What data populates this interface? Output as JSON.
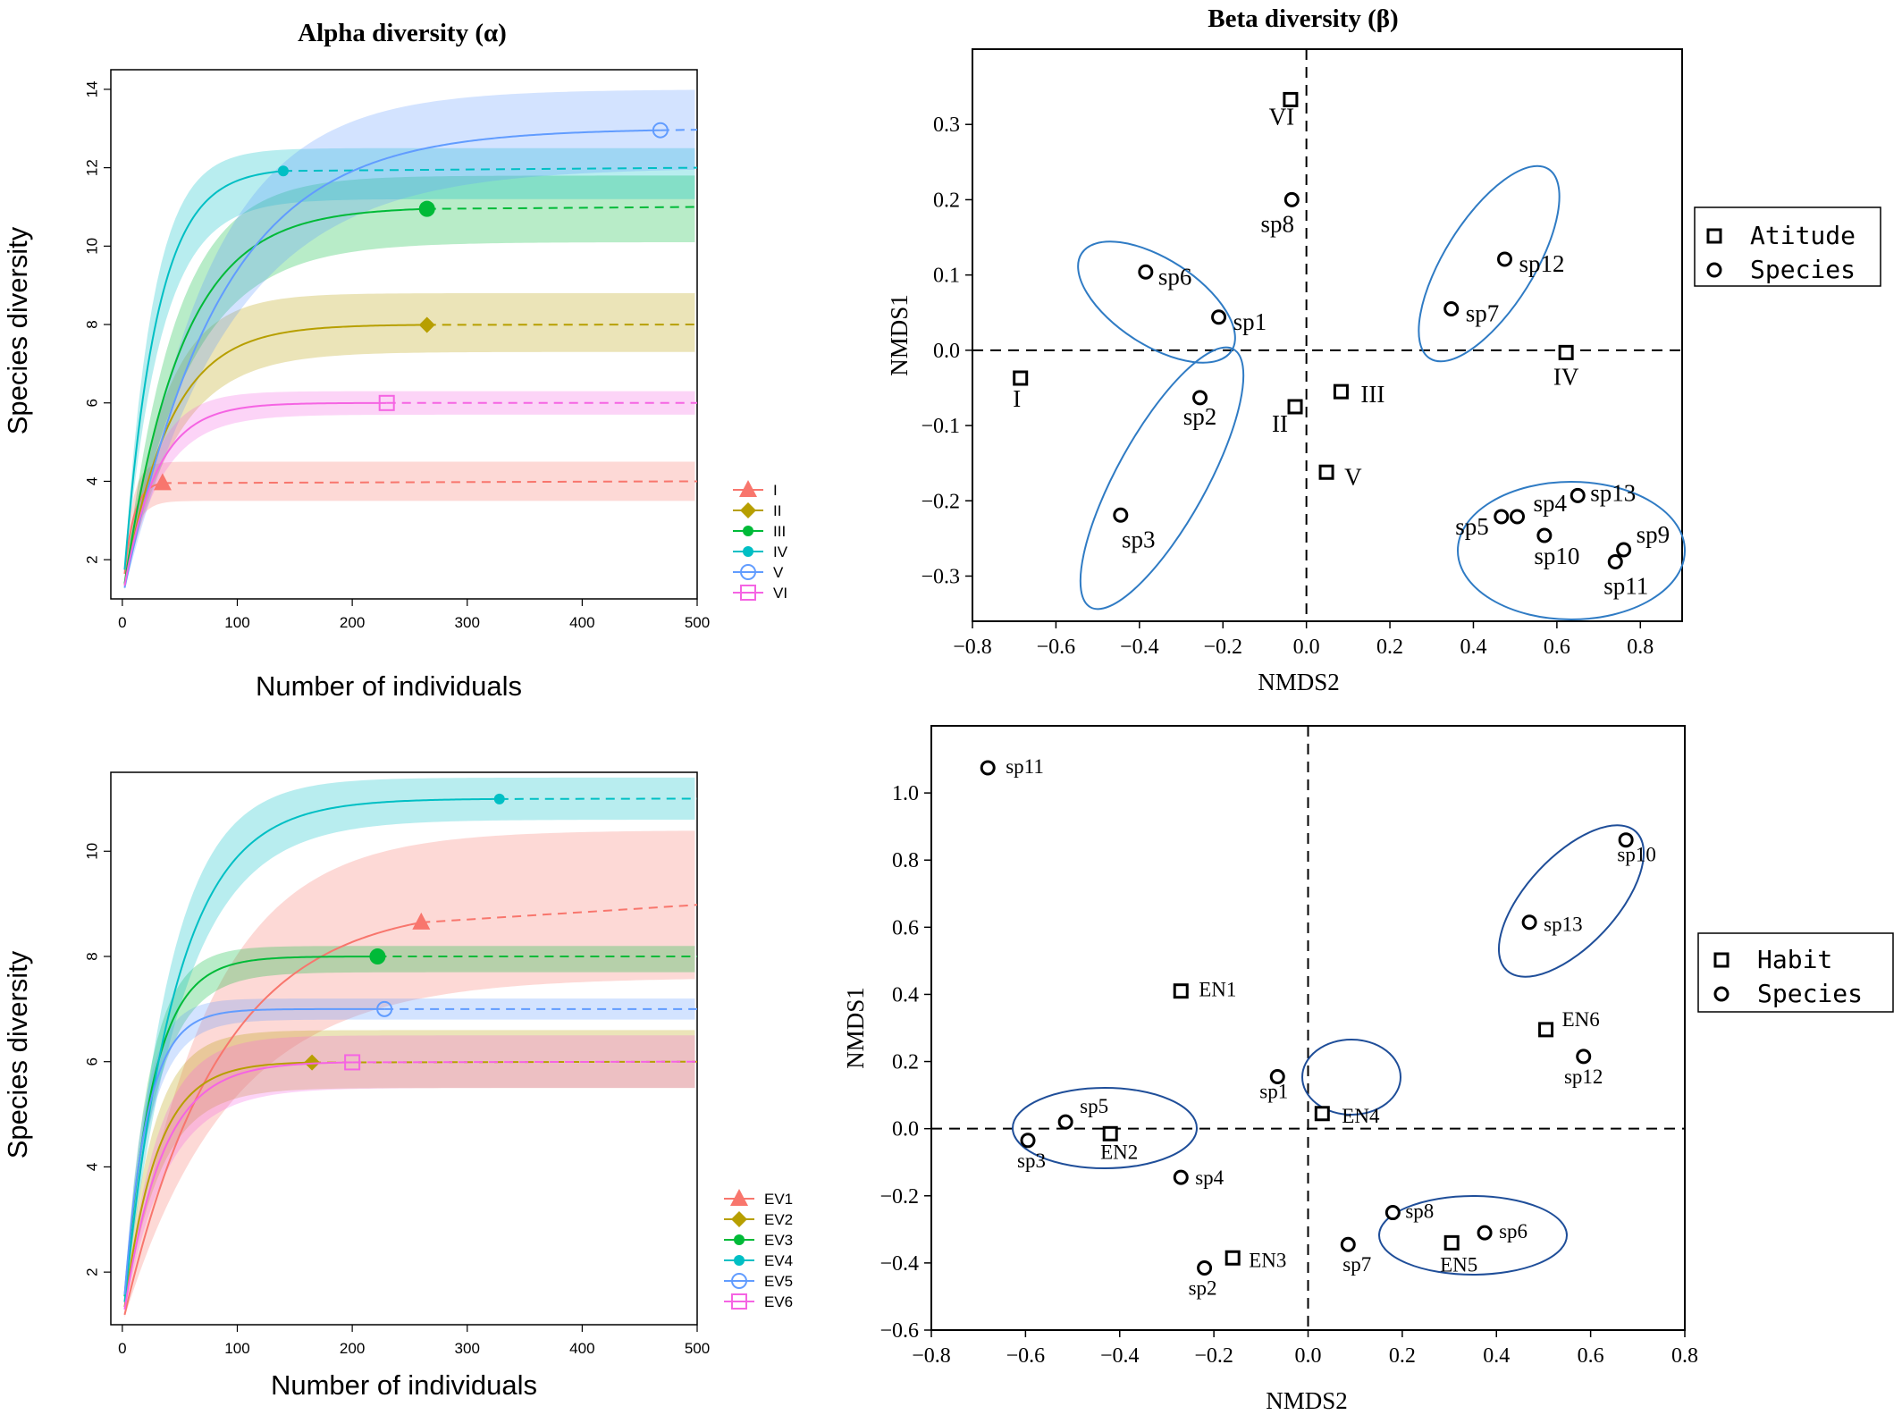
{
  "figure": {
    "title_alpha": "Alpha diversity (α)",
    "title_beta": "Beta diversity (β)"
  },
  "chart_data": [
    {
      "id": "alpha-top",
      "type": "line",
      "xlabel": "Number of individuals",
      "ylabel": "Species diversity",
      "xlim": [
        -10,
        500
      ],
      "ylim": [
        1,
        14.5
      ],
      "xticks": [
        0,
        100,
        200,
        300,
        400,
        500
      ],
      "yticks": [
        2,
        4,
        6,
        8,
        10,
        12,
        14
      ],
      "series": [
        {
          "name": "I",
          "color": "#F8766D",
          "asymptote": 4,
          "rate": 0.12,
          "obs_x": 35,
          "marker": "triangle",
          "band_lo": 3.5,
          "band_hi": 4.5,
          "band_mode": "const"
        },
        {
          "name": "II",
          "color": "#B79F00",
          "asymptote": 8,
          "rate": 0.025,
          "obs_x": 265,
          "marker": "diamond",
          "band_lo": 7.3,
          "band_hi": 8.8,
          "band_mode": "const"
        },
        {
          "name": "III",
          "color": "#00BA38",
          "asymptote": 11,
          "rate": 0.02,
          "obs_x": 265,
          "marker": "circle",
          "band_lo": 10.1,
          "band_hi": 11.8,
          "band_mode": "const"
        },
        {
          "name": "IV",
          "color": "#00BFC4",
          "asymptote": 12,
          "rate": 0.035,
          "obs_x": 140,
          "marker": "dot",
          "band_lo": 11.2,
          "band_hi": 12.5,
          "band_mode": "const"
        },
        {
          "name": "V",
          "color": "#619CFF",
          "asymptote": 13,
          "rate": 0.012,
          "obs_x": 468,
          "marker": "opencircle",
          "band_lo": 12.0,
          "band_hi": 14.0,
          "band_mode": "const"
        },
        {
          "name": "VI",
          "color": "#F564E3",
          "asymptote": 6,
          "rate": 0.035,
          "obs_x": 230,
          "marker": "opensquare",
          "band_lo": 5.7,
          "band_hi": 6.3,
          "band_mode": "const"
        }
      ]
    },
    {
      "id": "alpha-bottom",
      "type": "line",
      "xlabel": "Number of individuals",
      "ylabel": "Species diversity",
      "xlim": [
        -10,
        500
      ],
      "ylim": [
        1,
        11.5
      ],
      "xticks": [
        0,
        100,
        200,
        300,
        400,
        500
      ],
      "yticks": [
        2,
        4,
        6,
        8,
        10
      ],
      "series": [
        {
          "name": "EV1",
          "color": "#F8766D",
          "asymptote": 9,
          "rate": 0.012,
          "obs_x": 260,
          "marker": "triangle",
          "band_lo": 7.6,
          "band_hi": 10.4,
          "band_mode": "const"
        },
        {
          "name": "EV2",
          "color": "#B79F00",
          "asymptote": 6,
          "rate": 0.035,
          "obs_x": 165,
          "marker": "diamond",
          "band_lo": 5.5,
          "band_hi": 6.6,
          "band_mode": "const"
        },
        {
          "name": "EV3",
          "color": "#00BA38",
          "asymptote": 8,
          "rate": 0.04,
          "obs_x": 222,
          "marker": "circle",
          "band_lo": 7.7,
          "band_hi": 8.2,
          "band_mode": "const"
        },
        {
          "name": "EV4",
          "color": "#00BFC4",
          "asymptote": 11,
          "rate": 0.022,
          "obs_x": 328,
          "marker": "dot",
          "band_lo": 10.6,
          "band_hi": 11.4,
          "band_mode": "const"
        },
        {
          "name": "EV5",
          "color": "#619CFF",
          "asymptote": 7,
          "rate": 0.05,
          "obs_x": 228,
          "marker": "opencircle",
          "band_lo": 6.8,
          "band_hi": 7.2,
          "band_mode": "const"
        },
        {
          "name": "EV6",
          "color": "#F564E3",
          "asymptote": 6,
          "rate": 0.03,
          "obs_x": 200,
          "marker": "opensquare",
          "band_lo": 5.5,
          "band_hi": 6.5,
          "band_mode": "const"
        }
      ]
    },
    {
      "id": "beta-top",
      "type": "scatter",
      "xlabel": "NMDS2",
      "ylabel": "NMDS1",
      "xlim": [
        -0.8,
        0.9
      ],
      "ylim": [
        -0.36,
        0.4
      ],
      "xticks": [
        "−0.8",
        "−0.6",
        "−0.4",
        "−0.2",
        "0.0",
        "0.2",
        "0.4",
        "0.6",
        "0.8"
      ],
      "xtick_values": [
        -0.8,
        -0.6,
        -0.4,
        -0.2,
        0.0,
        0.2,
        0.4,
        0.6,
        0.8
      ],
      "yticks": [
        "−0.3",
        "−0.2",
        "−0.1",
        "0.0",
        "0.1",
        "0.2",
        "0.3"
      ],
      "ytick_values": [
        -0.3,
        -0.2,
        -0.1,
        0.0,
        0.1,
        0.2,
        0.3
      ],
      "legend": [
        {
          "marker": "square",
          "label": "Atitude"
        },
        {
          "marker": "circle",
          "label": "Species"
        }
      ],
      "sites": [
        {
          "label": "I",
          "x": -0.685,
          "y": -0.037
        },
        {
          "label": "II",
          "x": -0.027,
          "y": -0.075
        },
        {
          "label": "III",
          "x": 0.083,
          "y": -0.055
        },
        {
          "label": "IV",
          "x": 0.622,
          "y": -0.003
        },
        {
          "label": "V",
          "x": 0.048,
          "y": -0.162
        },
        {
          "label": "VI",
          "x": -0.038,
          "y": 0.333
        }
      ],
      "species": [
        {
          "label": "sp1",
          "x": -0.21,
          "y": 0.044
        },
        {
          "label": "sp2",
          "x": -0.255,
          "y": -0.063
        },
        {
          "label": "sp3",
          "x": -0.445,
          "y": -0.219
        },
        {
          "label": "sp4",
          "x": 0.505,
          "y": -0.221
        },
        {
          "label": "sp5",
          "x": 0.467,
          "y": -0.221
        },
        {
          "label": "sp6",
          "x": -0.385,
          "y": 0.104
        },
        {
          "label": "sp7",
          "x": 0.347,
          "y": 0.055
        },
        {
          "label": "sp8",
          "x": -0.035,
          "y": 0.2
        },
        {
          "label": "sp9",
          "x": 0.76,
          "y": -0.265
        },
        {
          "label": "sp10",
          "x": 0.57,
          "y": -0.246
        },
        {
          "label": "sp11",
          "x": 0.74,
          "y": -0.281
        },
        {
          "label": "sp12",
          "x": 0.475,
          "y": 0.121
        },
        {
          "label": "sp13",
          "x": 0.65,
          "y": -0.193
        }
      ]
    },
    {
      "id": "beta-bottom",
      "type": "scatter",
      "xlabel": "NMDS2",
      "ylabel": "NMDS1",
      "xlim": [
        -0.8,
        0.8
      ],
      "ylim": [
        -0.6,
        1.2
      ],
      "xticks": [
        "−0.8",
        "−0.6",
        "−0.4",
        "−0.2",
        "0.0",
        "0.2",
        "0.4",
        "0.6",
        "0.8"
      ],
      "xtick_values": [
        -0.8,
        -0.6,
        -0.4,
        -0.2,
        0.0,
        0.2,
        0.4,
        0.6,
        0.8
      ],
      "yticks": [
        "−0.6",
        "−0.4",
        "−0.2",
        "0.0",
        "0.2",
        "0.4",
        "0.6",
        "0.8",
        "1.0"
      ],
      "ytick_values": [
        -0.6,
        -0.4,
        -0.2,
        0.0,
        0.2,
        0.4,
        0.6,
        0.8,
        1.0
      ],
      "legend": [
        {
          "marker": "square",
          "label": "Habit"
        },
        {
          "marker": "circle",
          "label": "Species"
        }
      ],
      "sites": [
        {
          "label": "EN1",
          "x": -0.27,
          "y": 0.41
        },
        {
          "label": "EN2",
          "x": -0.42,
          "y": -0.015
        },
        {
          "label": "EN3",
          "x": -0.16,
          "y": -0.385
        },
        {
          "label": "EN4",
          "x": 0.03,
          "y": 0.045
        },
        {
          "label": "EN5",
          "x": 0.305,
          "y": -0.34
        },
        {
          "label": "EN6",
          "x": 0.505,
          "y": 0.295
        }
      ],
      "species": [
        {
          "label": "sp1",
          "x": -0.065,
          "y": 0.155
        },
        {
          "label": "sp2",
          "x": -0.22,
          "y": -0.415
        },
        {
          "label": "sp3",
          "x": -0.595,
          "y": -0.035
        },
        {
          "label": "sp4",
          "x": -0.27,
          "y": -0.145
        },
        {
          "label": "sp5",
          "x": -0.515,
          "y": 0.02
        },
        {
          "label": "sp6",
          "x": 0.375,
          "y": -0.31
        },
        {
          "label": "sp7",
          "x": 0.085,
          "y": -0.345
        },
        {
          "label": "sp8",
          "x": 0.18,
          "y": -0.25
        },
        {
          "label": "sp10",
          "x": 0.675,
          "y": 0.86
        },
        {
          "label": "sp11",
          "x": -0.68,
          "y": 1.075
        },
        {
          "label": "sp12",
          "x": 0.585,
          "y": 0.215
        },
        {
          "label": "sp13",
          "x": 0.47,
          "y": 0.615
        }
      ]
    }
  ]
}
